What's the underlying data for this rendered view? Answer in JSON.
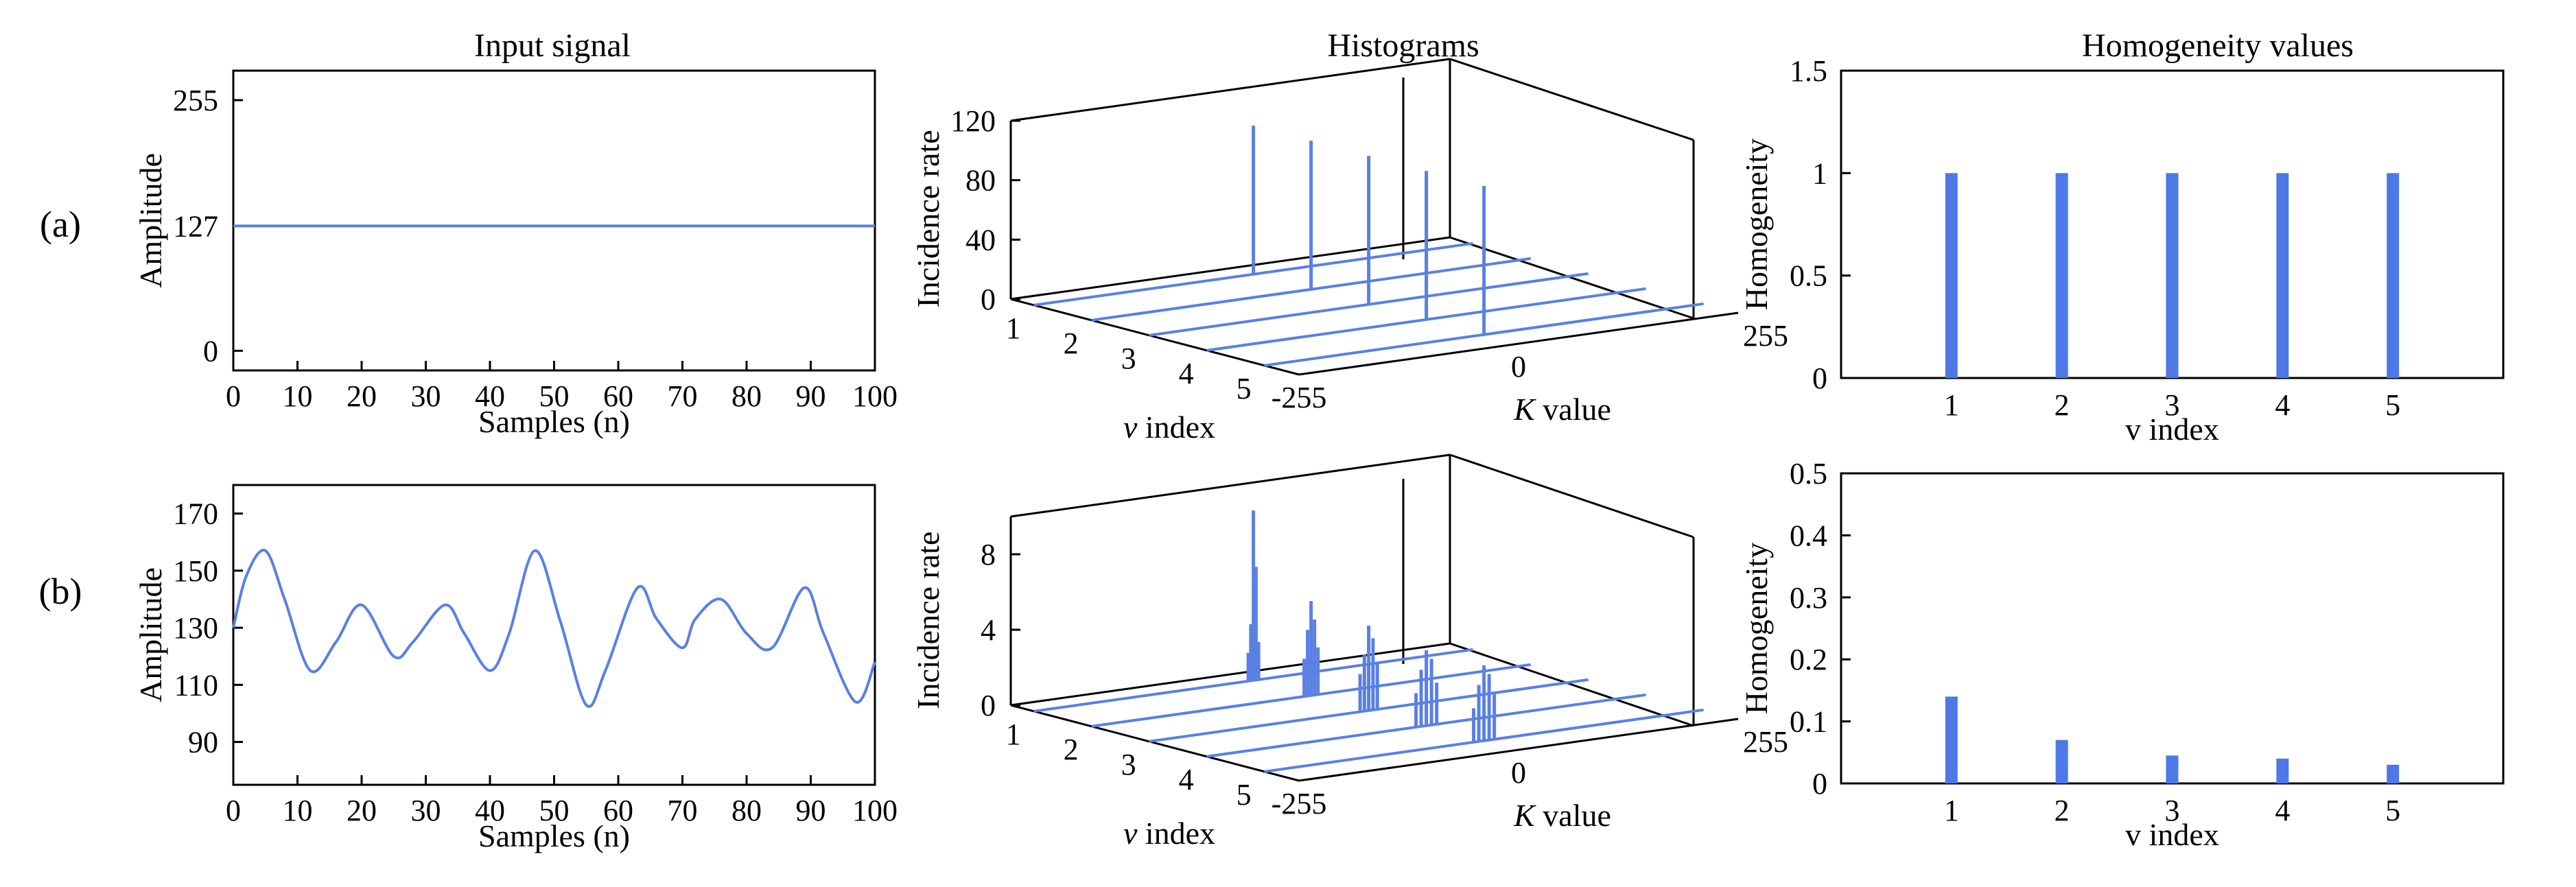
{
  "row_labels": [
    "(a)",
    "(b)"
  ],
  "column_titles": {
    "input": "Input signal",
    "histograms": "Histograms",
    "homogeneity": "Homogeneity values"
  },
  "colors": {
    "series": "#5a80e3",
    "bar": "#4e78e6",
    "axis": "#000000"
  },
  "chart_data": [
    {
      "id": "a-input",
      "type": "line",
      "title": "Input signal",
      "xlabel": "Samples (n)",
      "ylabel": "Amplitude",
      "xlim": [
        0,
        100
      ],
      "ylim": [
        -20,
        285
      ],
      "xticks": [
        0,
        10,
        20,
        30,
        40,
        50,
        60,
        70,
        80,
        90,
        100
      ],
      "yticks": [
        0,
        127,
        255
      ],
      "x": [
        0,
        100
      ],
      "y": [
        127,
        127
      ]
    },
    {
      "id": "a-hist",
      "type": "bar3d",
      "title": "Histograms",
      "xlabel": "K value",
      "ylabel": "v index",
      "zlabel": "Incidence rate",
      "k_range": [
        -255,
        255
      ],
      "k_ticks": [
        -255,
        0,
        255
      ],
      "v_ticks": [
        1,
        2,
        3,
        4,
        5
      ],
      "z_ticks": [
        0,
        40,
        80,
        120
      ],
      "zlim": [
        0,
        120
      ],
      "series": [
        {
          "v": 1,
          "bars": [
            {
              "k": 0,
              "value": 100
            }
          ]
        },
        {
          "v": 2,
          "bars": [
            {
              "k": 0,
              "value": 100
            }
          ]
        },
        {
          "v": 3,
          "bars": [
            {
              "k": 0,
              "value": 100
            }
          ]
        },
        {
          "v": 4,
          "bars": [
            {
              "k": 0,
              "value": 100
            }
          ]
        },
        {
          "v": 5,
          "bars": [
            {
              "k": 0,
              "value": 100
            }
          ]
        }
      ]
    },
    {
      "id": "a-homog",
      "type": "bar",
      "title": "Homogeneity values",
      "xlabel": "v index",
      "ylabel": "Homogeneity",
      "categories": [
        "1",
        "2",
        "3",
        "4",
        "5"
      ],
      "values": [
        1,
        1,
        1,
        1,
        1
      ],
      "xlim": [
        0,
        6
      ],
      "ylim": [
        0,
        1.5
      ],
      "yticks": [
        0,
        0.5,
        1,
        1.5
      ]
    },
    {
      "id": "b-input",
      "type": "line",
      "xlabel": "Samples (n)",
      "ylabel": "Amplitude",
      "xlim": [
        0,
        100
      ],
      "ylim": [
        75,
        180
      ],
      "xticks": [
        0,
        10,
        20,
        30,
        40,
        50,
        60,
        70,
        80,
        90,
        100
      ],
      "yticks": [
        90,
        110,
        130,
        150,
        170
      ],
      "x": [
        0,
        2,
        5,
        8,
        12,
        16,
        20,
        25,
        28,
        33,
        36,
        40,
        43,
        47,
        51,
        55,
        58,
        63,
        66,
        70,
        72,
        76,
        80,
        84,
        89,
        92,
        97,
        100
      ],
      "y": [
        130,
        148,
        157,
        140,
        115,
        125,
        138,
        120,
        125,
        138,
        128,
        115,
        128,
        157,
        132,
        103,
        115,
        144,
        133,
        123,
        133,
        140,
        128,
        123,
        144,
        128,
        104,
        118
      ]
    },
    {
      "id": "b-hist",
      "type": "bar3d",
      "xlabel": "K value",
      "ylabel": "v index",
      "zlabel": "Incidence rate",
      "k_range": [
        -255,
        255
      ],
      "k_ticks": [
        -255,
        0,
        255
      ],
      "v_ticks": [
        1,
        2,
        3,
        4,
        5
      ],
      "z_ticks": [
        0,
        4,
        8
      ],
      "zlim": [
        0,
        10
      ],
      "series": [
        {
          "v": 1,
          "bars": [
            {
              "k": 0,
              "value": 9
            },
            {
              "k": 3,
              "value": 6
            },
            {
              "k": -3,
              "value": 3
            },
            {
              "k": 6,
              "value": 2
            },
            {
              "k": -6,
              "value": 1.5
            }
          ]
        },
        {
          "v": 2,
          "bars": [
            {
              "k": 0,
              "value": 5
            },
            {
              "k": 4,
              "value": 4
            },
            {
              "k": -4,
              "value": 3.5
            },
            {
              "k": 8,
              "value": 2.5
            },
            {
              "k": -8,
              "value": 2
            }
          ]
        },
        {
          "v": 3,
          "bars": [
            {
              "k": 0,
              "value": 4.5
            },
            {
              "k": 5,
              "value": 3.8
            },
            {
              "k": -5,
              "value": 3
            },
            {
              "k": 10,
              "value": 2.5
            },
            {
              "k": -10,
              "value": 2
            }
          ]
        },
        {
          "v": 4,
          "bars": [
            {
              "k": 0,
              "value": 4
            },
            {
              "k": 6,
              "value": 3.5
            },
            {
              "k": -6,
              "value": 3
            },
            {
              "k": 12,
              "value": 2.2
            },
            {
              "k": -12,
              "value": 1.8
            }
          ]
        },
        {
          "v": 5,
          "bars": [
            {
              "k": 0,
              "value": 4
            },
            {
              "k": 6,
              "value": 3.5
            },
            {
              "k": -6,
              "value": 3
            },
            {
              "k": 12,
              "value": 2.5
            },
            {
              "k": -12,
              "value": 1.8
            }
          ]
        }
      ]
    },
    {
      "id": "b-homog",
      "type": "bar",
      "xlabel": "v index",
      "ylabel": "Homogeneity",
      "categories": [
        "1",
        "2",
        "3",
        "4",
        "5"
      ],
      "values": [
        0.14,
        0.07,
        0.045,
        0.04,
        0.03
      ],
      "xlim": [
        0,
        6
      ],
      "ylim": [
        0,
        0.5
      ],
      "yticks": [
        0,
        0.1,
        0.2,
        0.3,
        0.4,
        0.5
      ]
    }
  ]
}
